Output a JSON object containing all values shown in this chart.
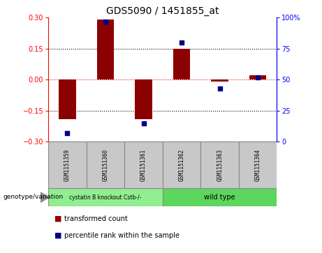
{
  "title": "GDS5090 / 1451855_at",
  "samples": [
    "GSM1151359",
    "GSM1151360",
    "GSM1151361",
    "GSM1151362",
    "GSM1151363",
    "GSM1151364"
  ],
  "red_bars": [
    -0.19,
    0.29,
    -0.19,
    0.15,
    -0.01,
    0.02
  ],
  "blue_dots": [
    7,
    97,
    15,
    80,
    43,
    52
  ],
  "ylim_left": [
    -0.3,
    0.3
  ],
  "ylim_right": [
    0,
    100
  ],
  "left_yticks": [
    -0.3,
    -0.15,
    0,
    0.15,
    0.3
  ],
  "right_yticks": [
    0,
    25,
    50,
    75,
    100
  ],
  "bar_color": "#8B0000",
  "dot_color": "#00008B",
  "bar_width": 0.45,
  "legend_red": "transformed count",
  "legend_blue": "percentile rank within the sample",
  "genotype_label": "genotype/variation",
  "group1_label": "cystatin B knockout Cstb-/-",
  "group2_label": "wild type",
  "group1_color": "#90EE90",
  "group2_color": "#5CD65C",
  "sample_box_color": "#C8C8C8",
  "title_fontsize": 10,
  "hline_dotted_color_zero": "red",
  "hline_dotted_color": "black"
}
